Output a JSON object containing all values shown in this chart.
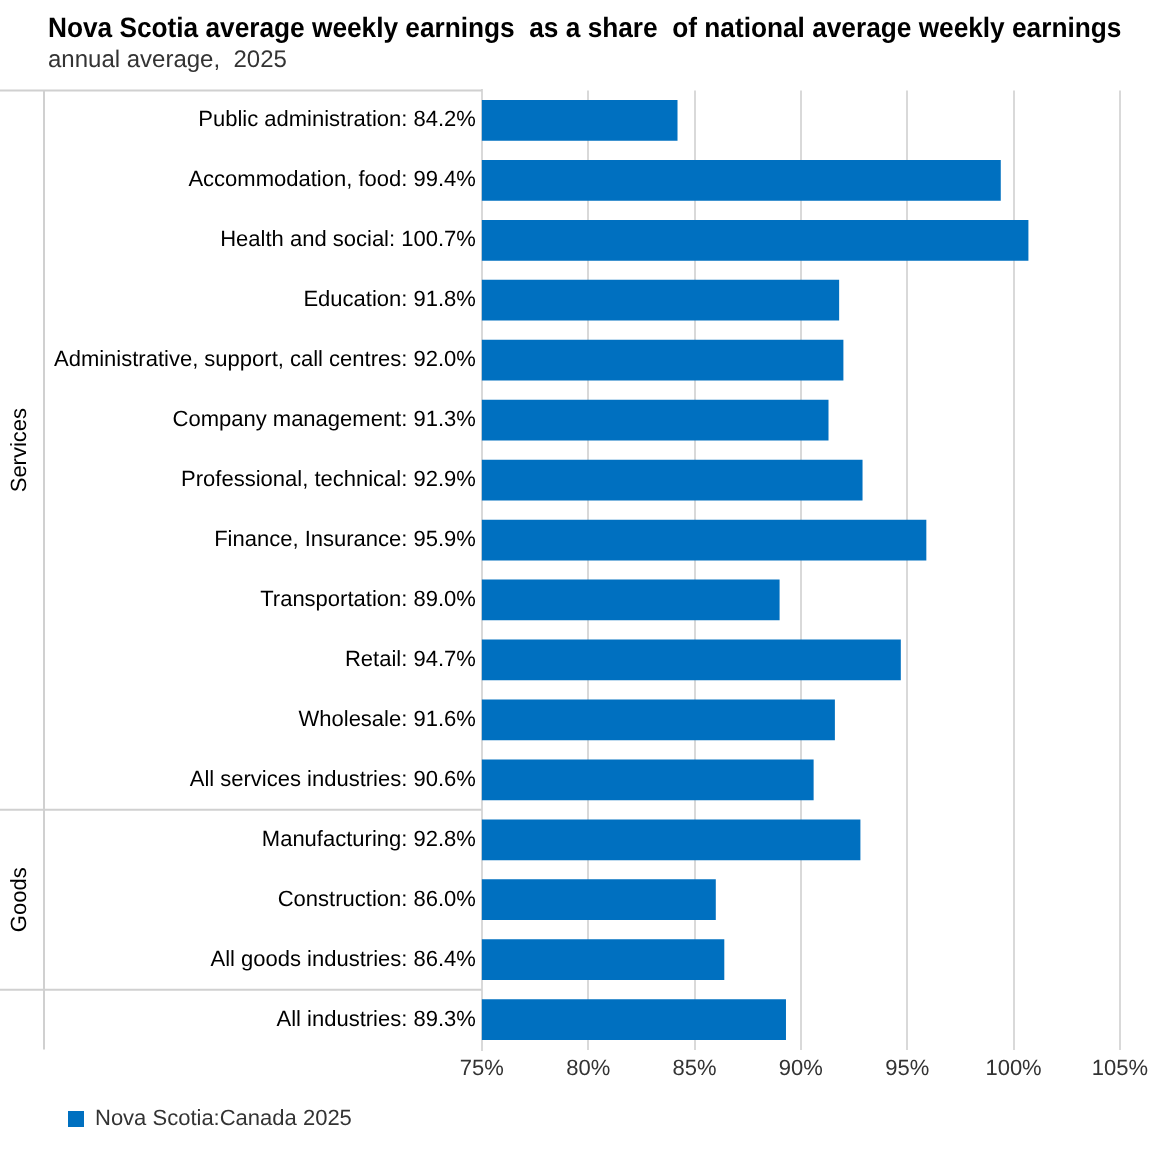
{
  "chart_data": {
    "type": "bar",
    "orientation": "horizontal",
    "title": "Nova Scotia average weekly earnings  as a share  of national average weekly earnings",
    "subtitle": "annual average,  2025",
    "categories": [
      "Public administration: 84.2%",
      "Accommodation, food: 99.4%",
      "Health and social: 100.7%",
      "Education: 91.8%",
      "Administrative, support, call centres: 92.0%",
      "Company management: 91.3%",
      "Professional, technical: 92.9%",
      "Finance, Insurance: 95.9%",
      "Transportation: 89.0%",
      "Retail: 94.7%",
      "Wholesale: 91.6%",
      "All services industries: 90.6%",
      "Manufacturing: 92.8%",
      "Construction: 86.0%",
      "All goods industries: 86.4%",
      "All industries: 89.3%"
    ],
    "series": [
      {
        "name": "Nova Scotia:Canada 2025",
        "color": "#0070c0",
        "values": [
          84.2,
          99.4,
          100.7,
          91.8,
          92.0,
          91.3,
          92.9,
          95.9,
          89.0,
          94.7,
          91.6,
          90.6,
          92.8,
          86.0,
          86.4,
          89.3
        ]
      }
    ],
    "xlim": [
      75,
      105
    ],
    "xticks": [
      {
        "value": 75,
        "label": "75%"
      },
      {
        "value": 80,
        "label": "80%"
      },
      {
        "value": 85,
        "label": "85%"
      },
      {
        "value": 90,
        "label": "90%"
      },
      {
        "value": 95,
        "label": "95%"
      },
      {
        "value": 100,
        "label": "100%"
      },
      {
        "value": 105,
        "label": "105%"
      }
    ],
    "grid": "x",
    "legend": "bottom left",
    "annotations": [
      "Services",
      "Goods"
    ]
  }
}
